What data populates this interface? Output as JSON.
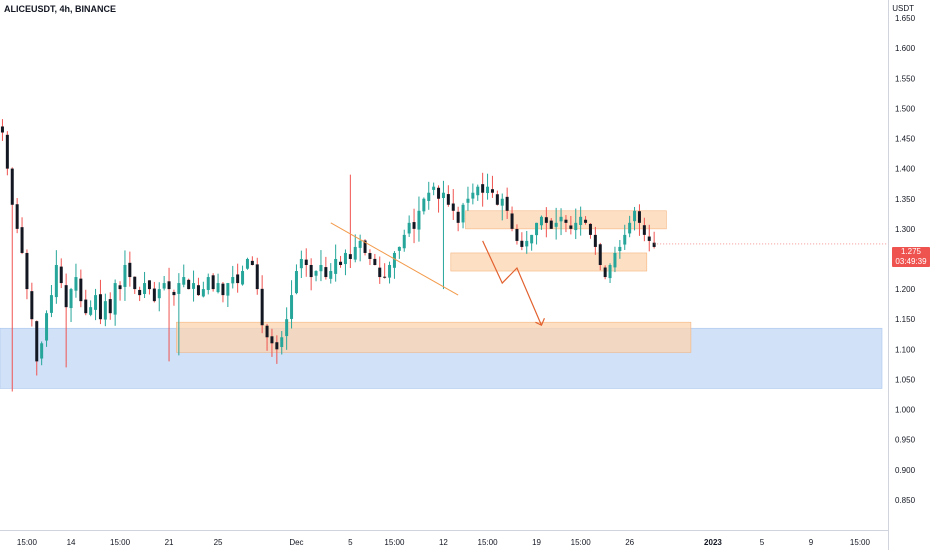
{
  "header": {
    "symbol": "ALICEUSDT, 4h, BINANCE",
    "unit": "USDT"
  },
  "last_price": {
    "price": "1.275",
    "countdown": "03:49:39"
  },
  "colors": {
    "bull": "#26a69a",
    "bear": "#131722",
    "wick_bear": "#ef5350",
    "zone_orange": "#fcd4b0",
    "zone_orange_border": "#f6b57f",
    "zone_blue": "#c9dcf7",
    "zone_blue_border": "#a9c6ef",
    "arrow": "#e2612f",
    "trendline": "#f39a4a",
    "price_tag": "#ef5350"
  },
  "chart_data": {
    "type": "candlestick",
    "title": "ALICEUSDT, 4h, BINANCE",
    "ylabel": "USDT",
    "ylim": [
      0.8,
      1.68
    ],
    "y_ticks": [
      "1.650",
      "1.600",
      "1.550",
      "1.500",
      "1.450",
      "1.400",
      "1.350",
      "1.300",
      "1.250",
      "1.200",
      "1.150",
      "1.100",
      "1.050",
      "1.000",
      "0.950",
      "0.900",
      "0.850"
    ],
    "x_ticks": [
      "15:00",
      "14",
      "15:00",
      "21",
      "25",
      "Dec",
      "5",
      "15:00",
      "12",
      "15:00",
      "19",
      "15:00",
      "26",
      "2023",
      "5",
      "9",
      "15:00"
    ],
    "x_tick_bars": [
      5,
      14,
      24,
      34,
      44,
      60,
      71,
      80,
      90,
      99,
      109,
      118,
      128,
      145,
      155,
      165,
      175
    ],
    "bold_tick": "2023",
    "close_path": [
      1.46,
      1.4,
      1.34,
      1.3,
      1.26,
      1.2,
      1.15,
      1.08,
      1.11,
      1.16,
      1.19,
      1.24,
      1.21,
      1.17,
      1.2,
      1.22,
      1.18,
      1.16,
      1.17,
      1.19,
      1.15,
      1.18,
      1.16,
      1.21,
      1.2,
      1.24,
      1.22,
      1.2,
      1.19,
      1.21,
      1.2,
      1.18,
      1.2,
      1.21,
      1.2,
      1.19,
      1.21,
      1.22,
      1.2,
      1.21,
      1.19,
      1.2,
      1.22,
      1.2,
      1.21,
      1.19,
      1.21,
      1.22,
      1.21,
      1.23,
      1.25,
      1.24,
      1.2,
      1.14,
      1.12,
      1.11,
      1.1,
      1.12,
      1.15,
      1.19,
      1.23,
      1.25,
      1.24,
      1.22,
      1.23,
      1.24,
      1.22,
      1.23,
      1.25,
      1.24,
      1.26,
      1.25,
      1.27,
      1.28,
      1.26,
      1.25,
      1.24,
      1.22,
      1.22,
      1.24,
      1.26,
      1.27,
      1.29,
      1.31,
      1.3,
      1.33,
      1.35,
      1.36,
      1.37,
      1.35,
      1.36,
      1.34,
      1.33,
      1.31,
      1.34,
      1.35,
      1.36,
      1.37,
      1.36,
      1.37,
      1.36,
      1.34,
      1.35,
      1.33,
      1.3,
      1.28,
      1.27,
      1.28,
      1.29,
      1.31,
      1.32,
      1.31,
      1.3,
      1.31,
      1.32,
      1.31,
      1.3,
      1.31,
      1.32,
      1.31,
      1.29,
      1.27,
      1.24,
      1.22,
      1.24,
      1.26,
      1.27,
      1.29,
      1.31,
      1.33,
      1.31,
      1.29,
      1.28,
      1.27
    ],
    "extrema": [
      {
        "bar": 2,
        "low": 1.03
      },
      {
        "bar": 13,
        "low": 1.07
      },
      {
        "bar": 34,
        "low": 1.08
      },
      {
        "bar": 36,
        "low": 1.09
      },
      {
        "bar": 71,
        "high": 1.39
      },
      {
        "bar": 90,
        "low": 1.2
      },
      {
        "bar": 95,
        "high": 1.37
      }
    ],
    "zones": [
      {
        "color": "orange",
        "x_bars": [
          95,
          136
        ],
        "y": [
          1.3,
          1.33
        ]
      },
      {
        "color": "orange",
        "x_bars": [
          92,
          132
        ],
        "y": [
          1.23,
          1.26
        ]
      },
      {
        "color": "orange",
        "x_bars": [
          36,
          141
        ],
        "y": [
          1.095,
          1.145
        ]
      },
      {
        "color": "blue",
        "x_bars": [
          0,
          180
        ],
        "y": [
          1.035,
          1.135
        ]
      }
    ],
    "trendline": [
      {
        "bar": 67,
        "y": 1.31
      },
      {
        "bar": 93,
        "y": 1.19
      }
    ],
    "projection_arrow": [
      {
        "bar": 98,
        "y": 1.28
      },
      {
        "bar": 102,
        "y": 1.21
      },
      {
        "bar": 105,
        "y": 1.235
      },
      {
        "bar": 110,
        "y": 1.14
      }
    ]
  }
}
